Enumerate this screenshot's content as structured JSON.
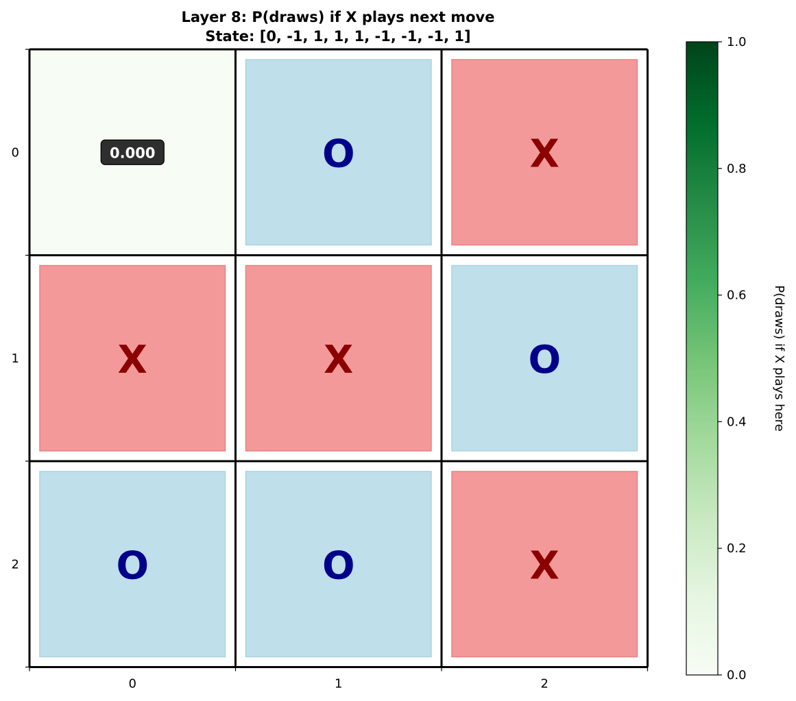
{
  "chart_data": {
    "type": "heatmap",
    "title": "Layer 8: P(draws) if X plays next move",
    "subtitle": "State: [0, -1, 1, 1, 1, -1, -1, -1, 1]",
    "state": [
      0,
      -1,
      1,
      1,
      1,
      -1,
      -1,
      -1,
      1
    ],
    "rows": [
      "0",
      "1",
      "2"
    ],
    "cols": [
      "0",
      "1",
      "2"
    ],
    "cells": [
      {
        "row": 0,
        "col": 0,
        "type": "empty",
        "value": 0.0,
        "label": "0.000"
      },
      {
        "row": 0,
        "col": 1,
        "type": "O",
        "label": "O"
      },
      {
        "row": 0,
        "col": 2,
        "type": "X",
        "label": "X"
      },
      {
        "row": 1,
        "col": 0,
        "type": "X",
        "label": "X"
      },
      {
        "row": 1,
        "col": 1,
        "type": "X",
        "label": "X"
      },
      {
        "row": 1,
        "col": 2,
        "type": "O",
        "label": "O"
      },
      {
        "row": 2,
        "col": 0,
        "type": "O",
        "label": "O"
      },
      {
        "row": 2,
        "col": 1,
        "type": "O",
        "label": "O"
      },
      {
        "row": 2,
        "col": 2,
        "type": "X",
        "label": "X"
      }
    ],
    "colorbar": {
      "label": "P(draws) if X plays here",
      "range": [
        0,
        1
      ],
      "ticks": [
        "0.0",
        "0.2",
        "0.4",
        "0.6",
        "0.8",
        "1.0"
      ],
      "colormap": "Greens"
    },
    "colors": {
      "x_fill": "#f39999",
      "x_edge": "#e98080",
      "x_text": "#8b0000",
      "o_fill": "#bfdfea",
      "o_edge": "#a8d3e3",
      "o_text": "#00008b",
      "value_box": "#2e2e2e",
      "grid": "#000000"
    }
  }
}
